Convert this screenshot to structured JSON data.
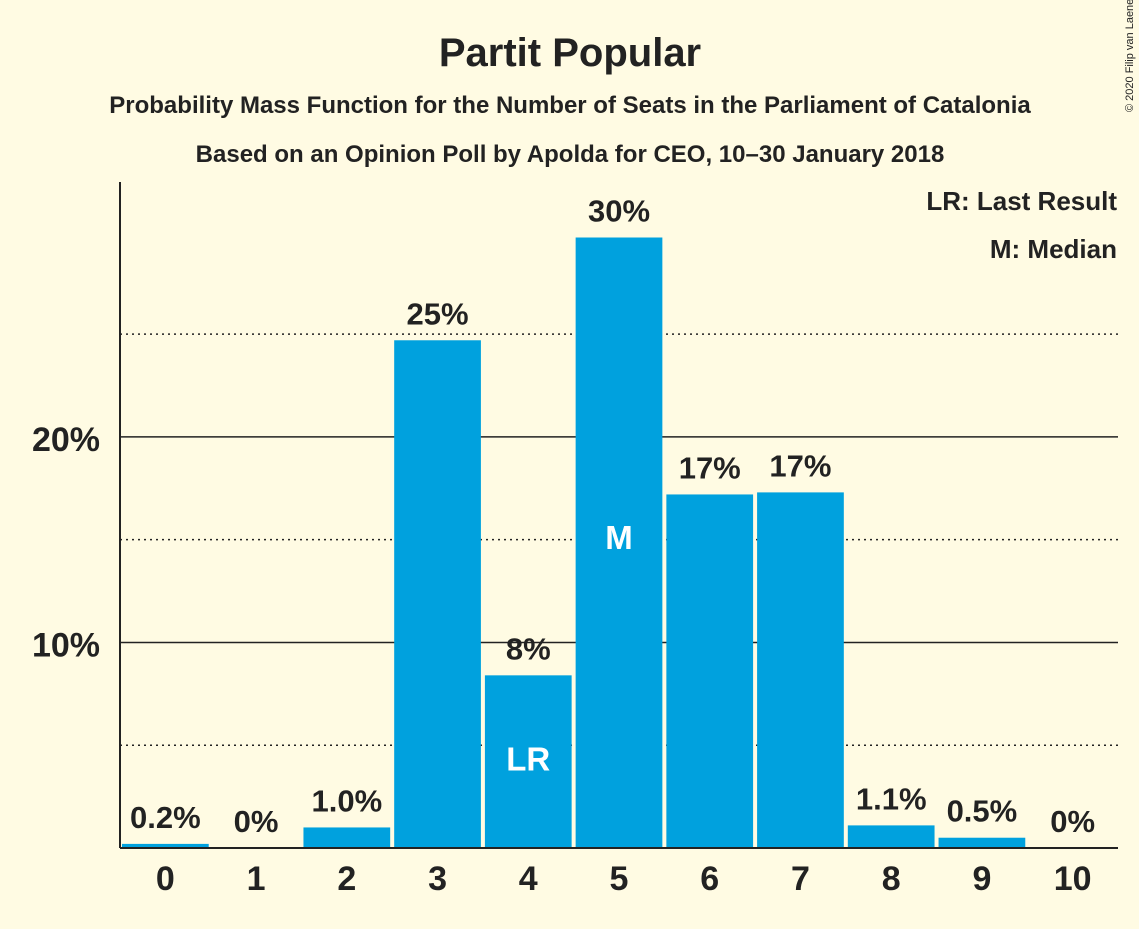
{
  "copyright": "© 2020 Filip van Laenen",
  "chart_data": {
    "type": "bar",
    "title": "Partit Popular",
    "subtitle": "Probability Mass Function for the Number of Seats in the Parliament of Catalonia",
    "subtitle2": "Based on an Opinion Poll by Apolda for CEO, 10–30 January 2018",
    "xlabel": "",
    "ylabel": "",
    "categories": [
      "0",
      "1",
      "2",
      "3",
      "4",
      "5",
      "6",
      "7",
      "8",
      "9",
      "10"
    ],
    "values": [
      0.2,
      0,
      1.0,
      24.7,
      8.4,
      29.7,
      17.2,
      17.3,
      1.1,
      0.5,
      0
    ],
    "value_labels": [
      "0.2%",
      "0%",
      "1.0%",
      "25%",
      "8%",
      "30%",
      "17%",
      "17%",
      "1.1%",
      "0.5%",
      "0%"
    ],
    "bar_markers": [
      {
        "category": "4",
        "label": "LR"
      },
      {
        "category": "5",
        "label": "M"
      }
    ],
    "ylim": [
      0,
      32.4
    ],
    "yticks": [
      {
        "value": 10,
        "label": "10%",
        "major": true
      },
      {
        "value": 20,
        "label": "20%",
        "major": true
      }
    ],
    "minor_gridlines": [
      5,
      15,
      25
    ],
    "grid": true,
    "legend_position": "top-right",
    "legend": [
      "LR: Last Result",
      "M: Median"
    ],
    "colors": {
      "bar": "#00a1de",
      "background": "#fffbe3",
      "text": "#222222",
      "marker_text": "#ffffff"
    }
  }
}
